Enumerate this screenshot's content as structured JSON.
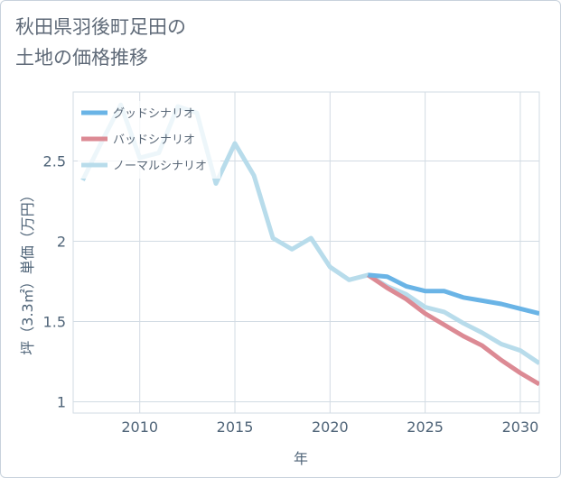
{
  "title": {
    "line1": "秋田県羽後町足田の",
    "line2": "土地の価格推移"
  },
  "chart_data": {
    "type": "line",
    "xlabel": "年",
    "ylabel": "坪（3.3㎡）単価（万円）",
    "xlim": [
      2006.5,
      2031
    ],
    "ylim": [
      0.93,
      2.93
    ],
    "x_ticks": [
      "2010",
      "2015",
      "2020",
      "2025",
      "2030"
    ],
    "y_ticks": [
      "1",
      "1.5",
      "2",
      "2.5"
    ],
    "grid": true,
    "legend_position": "top-left",
    "series": [
      {
        "name": "グッドシナリオ",
        "color": "#6ab4e6",
        "x": [
          2022,
          2023,
          2024,
          2025,
          2026,
          2027,
          2028,
          2029,
          2030,
          2031
        ],
        "y": [
          1.79,
          1.78,
          1.72,
          1.69,
          1.69,
          1.65,
          1.63,
          1.61,
          1.58,
          1.55
        ]
      },
      {
        "name": "バッドシナリオ",
        "color": "#dc8a94",
        "x": [
          2022,
          2023,
          2024,
          2025,
          2026,
          2027,
          2028,
          2029,
          2030,
          2031
        ],
        "y": [
          1.79,
          1.71,
          1.64,
          1.55,
          1.48,
          1.41,
          1.35,
          1.26,
          1.18,
          1.11
        ]
      },
      {
        "name": "ノーマルシナリオ",
        "color": "#b8dceb",
        "x": [
          2007,
          2008,
          2009,
          2010,
          2011,
          2012,
          2013,
          2014,
          2015,
          2016,
          2017,
          2018,
          2019,
          2020,
          2021,
          2022,
          2023,
          2024,
          2025,
          2026,
          2027,
          2028,
          2029,
          2030,
          2031
        ],
        "y": [
          2.38,
          2.62,
          2.85,
          2.52,
          2.55,
          2.84,
          2.8,
          2.36,
          2.61,
          2.41,
          2.02,
          1.95,
          2.02,
          1.84,
          1.76,
          1.79,
          1.72,
          1.67,
          1.59,
          1.56,
          1.49,
          1.43,
          1.36,
          1.32,
          1.24
        ]
      }
    ]
  }
}
